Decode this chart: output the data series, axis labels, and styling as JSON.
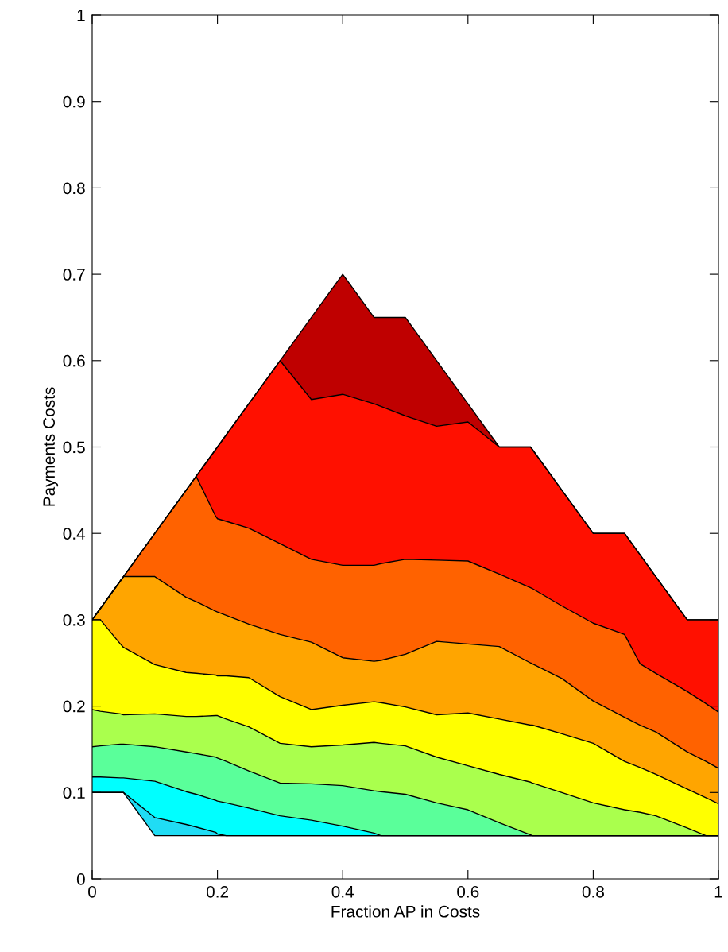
{
  "chart_data": {
    "type": "area",
    "stacked": true,
    "xlabel": "Fraction AP in Costs",
    "ylabel": "Payments Costs",
    "xlim": [
      0,
      1
    ],
    "ylim": [
      0,
      1
    ],
    "xticks": [
      0,
      0.2,
      0.4,
      0.6,
      0.8,
      1
    ],
    "yticks": [
      0,
      0.1,
      0.2,
      0.3,
      0.4,
      0.5,
      0.6,
      0.7,
      0.8,
      0.9,
      1
    ],
    "grid": false,
    "legend": false,
    "x": [
      0,
      0.013,
      0.045,
      0.05,
      0.1,
      0.15,
      0.166,
      0.197,
      0.2,
      0.214,
      0.25,
      0.3,
      0.35,
      0.4,
      0.45,
      0.461,
      0.5,
      0.55,
      0.6,
      0.65,
      0.7,
      0.703,
      0.75,
      0.8,
      0.85,
      0.875,
      0.9,
      0.95,
      0.98,
      1
    ],
    "series": [
      {
        "color": "#ffffff",
        "values": [
          0.1,
          0.1,
          0.1,
          0.1,
          0.05,
          0.05,
          0.05,
          0.05,
          0.05,
          0.05,
          0.05,
          0.05,
          0.05,
          0.05,
          0.05,
          0.05,
          0.05,
          0.05,
          0.05,
          0.05,
          0.05,
          0.05,
          0.05,
          0.05,
          0.05,
          0.05,
          0.05,
          0.05,
          0.05,
          0.05
        ]
      },
      {
        "color": "#20dcf4",
        "values": [
          0,
          0,
          0,
          0,
          0.021,
          0.013,
          0.01,
          0.004,
          0.002,
          0,
          0,
          0,
          0,
          0,
          0,
          0,
          0,
          0,
          0,
          0,
          0,
          0,
          0,
          0,
          0,
          0,
          0,
          0,
          0,
          0
        ]
      },
      {
        "color": "#00ffff",
        "values": [
          0.018,
          0.018,
          0.017,
          0.017,
          0.042,
          0.038,
          0.038,
          0.037,
          0.038,
          0.038,
          0.032,
          0.023,
          0.018,
          0.011,
          0.003,
          0,
          0,
          0,
          0,
          0,
          0,
          0,
          0,
          0,
          0,
          0,
          0,
          0,
          0,
          0
        ]
      },
      {
        "color": "#5aff9a",
        "values": [
          0.035,
          0.036,
          0.039,
          0.039,
          0.04,
          0.046,
          0.047,
          0.05,
          0.05,
          0.048,
          0.043,
          0.038,
          0.042,
          0.047,
          0.049,
          0.051,
          0.048,
          0.038,
          0.03,
          0.015,
          0.001,
          0,
          0,
          0,
          0,
          0,
          0,
          0,
          0,
          0
        ]
      },
      {
        "color": "#aaff4d",
        "values": [
          0.043,
          0.04,
          0.035,
          0.034,
          0.038,
          0.041,
          0.043,
          0.048,
          0.049,
          0.049,
          0.051,
          0.046,
          0.043,
          0.047,
          0.056,
          0.056,
          0.056,
          0.053,
          0.051,
          0.056,
          0.061,
          0.061,
          0.05,
          0.038,
          0.03,
          0.027,
          0.023,
          0.009,
          0,
          0
        ]
      },
      {
        "color": "#ffff00",
        "values": [
          0.104,
          0.106,
          0.081,
          0.078,
          0.057,
          0.051,
          0.05,
          0.047,
          0.046,
          0.05,
          0.057,
          0.054,
          0.043,
          0.046,
          0.047,
          0.047,
          0.045,
          0.049,
          0.061,
          0.064,
          0.066,
          0.067,
          0.068,
          0.069,
          0.056,
          0.052,
          0.048,
          0.045,
          0.044,
          0.037
        ]
      },
      {
        "color": "#ffa500",
        "values": [
          0,
          0.013,
          0.073,
          0.082,
          0.102,
          0.087,
          0.083,
          0.074,
          0.074,
          0.07,
          0.062,
          0.072,
          0.078,
          0.055,
          0.047,
          0.049,
          0.061,
          0.085,
          0.08,
          0.084,
          0.072,
          0.071,
          0.064,
          0.049,
          0.051,
          0.049,
          0.049,
          0.043,
          0.042,
          0.041
        ]
      },
      {
        "color": "#ff6200",
        "values": [
          0,
          0,
          0,
          0,
          0.05,
          0.124,
          0.145,
          0.11,
          0.108,
          0.109,
          0.111,
          0.105,
          0.096,
          0.107,
          0.111,
          0.112,
          0.11,
          0.094,
          0.096,
          0.084,
          0.087,
          0.087,
          0.084,
          0.09,
          0.096,
          0.071,
          0.068,
          0.07,
          0.067,
          0.065
        ]
      },
      {
        "color": "#ff1000",
        "values": [
          0,
          0,
          0,
          0,
          0,
          0,
          0,
          0.077,
          0.083,
          0.1,
          0.144,
          0.212,
          0.185,
          0.198,
          0.187,
          0.182,
          0.166,
          0.155,
          0.161,
          0.147,
          0.163,
          0.161,
          0.134,
          0.104,
          0.117,
          0.126,
          0.112,
          0.083,
          0.097,
          0.107
        ]
      },
      {
        "color": "#bf0000",
        "values": [
          0,
          0,
          0,
          0,
          0,
          0,
          0,
          0,
          0,
          0,
          0,
          0,
          0.095,
          0.139,
          0.1,
          0.103,
          0.114,
          0.076,
          0.021,
          0,
          0,
          0,
          0,
          0,
          0,
          0,
          0,
          0,
          0,
          0
        ]
      }
    ]
  }
}
